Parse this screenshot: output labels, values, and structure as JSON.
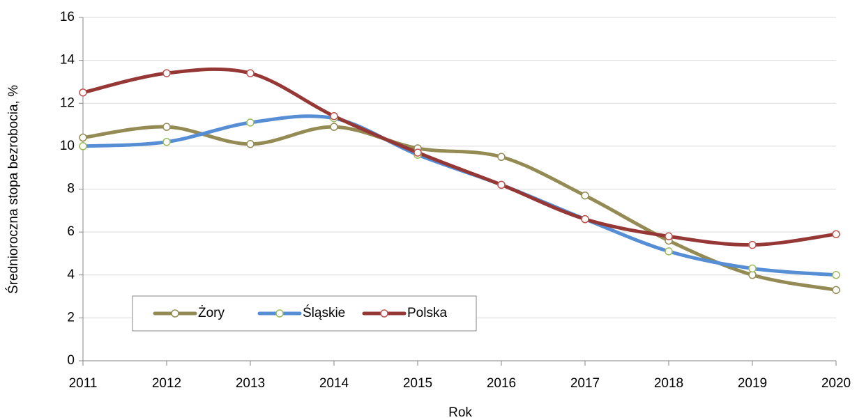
{
  "chart_data": {
    "type": "line",
    "x_label": "Rok",
    "y_label": "Średnioroczna stopa bezrobocia, %",
    "categories": [
      "2011",
      "2012",
      "2013",
      "2014",
      "2015",
      "2016",
      "2017",
      "2018",
      "2019",
      "2020"
    ],
    "series": [
      {
        "name": "Żory",
        "color": "#948a54",
        "marker_color": "#948a54",
        "values": [
          10.4,
          10.9,
          10.1,
          10.9,
          9.9,
          9.5,
          7.7,
          5.6,
          4.0,
          3.3
        ]
      },
      {
        "name": "Śląskie",
        "color": "#558ed5",
        "marker_color": "#9bbb59",
        "values": [
          10.0,
          10.2,
          11.1,
          11.3,
          9.6,
          8.2,
          6.6,
          5.1,
          4.3,
          4.0
        ]
      },
      {
        "name": "Polska",
        "color": "#953735",
        "marker_color": "#c0504d",
        "values": [
          12.5,
          13.4,
          13.4,
          11.4,
          9.7,
          8.2,
          6.6,
          5.8,
          5.4,
          5.9
        ]
      }
    ],
    "ylim": [
      0,
      16
    ],
    "yticks": [
      0,
      2,
      4,
      6,
      8,
      10,
      12,
      14,
      16
    ],
    "grid": true,
    "smooth": true,
    "legend": "bottom-left"
  }
}
